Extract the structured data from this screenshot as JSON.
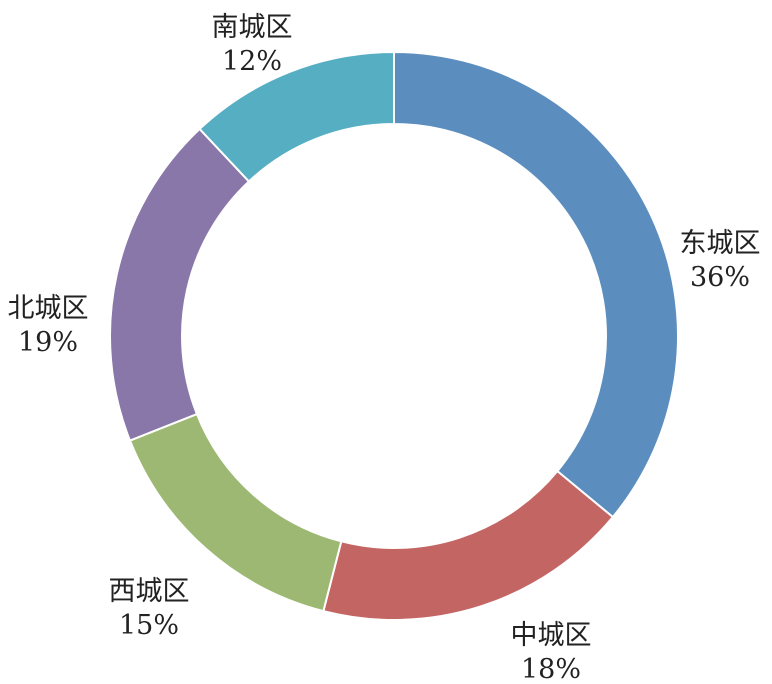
{
  "chart_data": {
    "type": "pie",
    "variant": "donut",
    "title": "",
    "start": "top",
    "direction": "clockwise",
    "slices": [
      {
        "name": "东城区",
        "value": 36,
        "label": "36%",
        "color": "#5b8dbe"
      },
      {
        "name": "中城区",
        "value": 18,
        "label": "18%",
        "color": "#c36563"
      },
      {
        "name": "西城区",
        "value": 15,
        "label": "15%",
        "color": "#9db872"
      },
      {
        "name": "北城区",
        "value": 19,
        "label": "19%",
        "color": "#8877a8"
      },
      {
        "name": "南城区",
        "value": 12,
        "label": "12%",
        "color": "#56aec2"
      }
    ]
  }
}
